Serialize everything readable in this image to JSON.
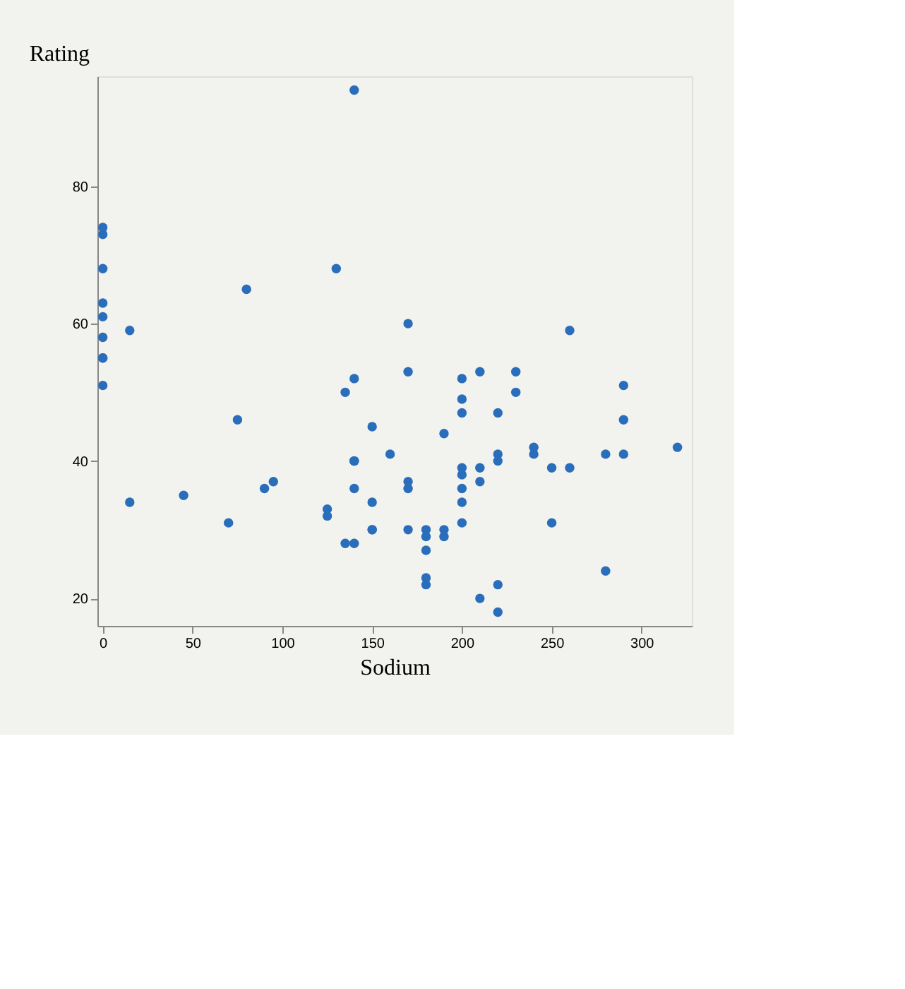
{
  "chart_data": {
    "type": "scatter",
    "xlabel": "Sodium",
    "ylabel": "Rating",
    "x": [
      130,
      15,
      260,
      140,
      200,
      180,
      125,
      210,
      200,
      210,
      220,
      290,
      210,
      140,
      180,
      280,
      290,
      90,
      180,
      140,
      80,
      220,
      140,
      190,
      125,
      200,
      0,
      160,
      240,
      135,
      45,
      280,
      140,
      170,
      75,
      220,
      250,
      180,
      170,
      170,
      260,
      150,
      180,
      0,
      95,
      150,
      150,
      150,
      220,
      190,
      220,
      170,
      170,
      200,
      320,
      0,
      0,
      135,
      0,
      210,
      140,
      0,
      240,
      290,
      0,
      0,
      0,
      70,
      230,
      15,
      200,
      190,
      200,
      250,
      140,
      230,
      200,
      200
    ],
    "series": [
      {
        "color": "#2a6ebb",
        "values": [
          68,
          34,
          59,
          94,
          34,
          30,
          33,
          37,
          49,
          53,
          18,
          51,
          20,
          40,
          23,
          41,
          46,
          36,
          22,
          40,
          65,
          47,
          36,
          44,
          32,
          31,
          58,
          41,
          41,
          28,
          35,
          24,
          52,
          53,
          46,
          22,
          31,
          29,
          37,
          36,
          39,
          45,
          27,
          55,
          37,
          34,
          30,
          30,
          40,
          30,
          41,
          60,
          30,
          38,
          42,
          61,
          63,
          50,
          51,
          39,
          40,
          55,
          42,
          41,
          68,
          74,
          73,
          31,
          53,
          59,
          39,
          29,
          47,
          39,
          28,
          50,
          52,
          36
        ]
      }
    ],
    "xlim": [
      -3,
      328
    ],
    "ylim": [
      16,
      96
    ],
    "xticks": [
      0,
      50,
      100,
      150,
      200,
      250,
      300
    ],
    "yticks": [
      20,
      40,
      60,
      80
    ],
    "grid": false,
    "marker": "circle",
    "legend": false
  }
}
